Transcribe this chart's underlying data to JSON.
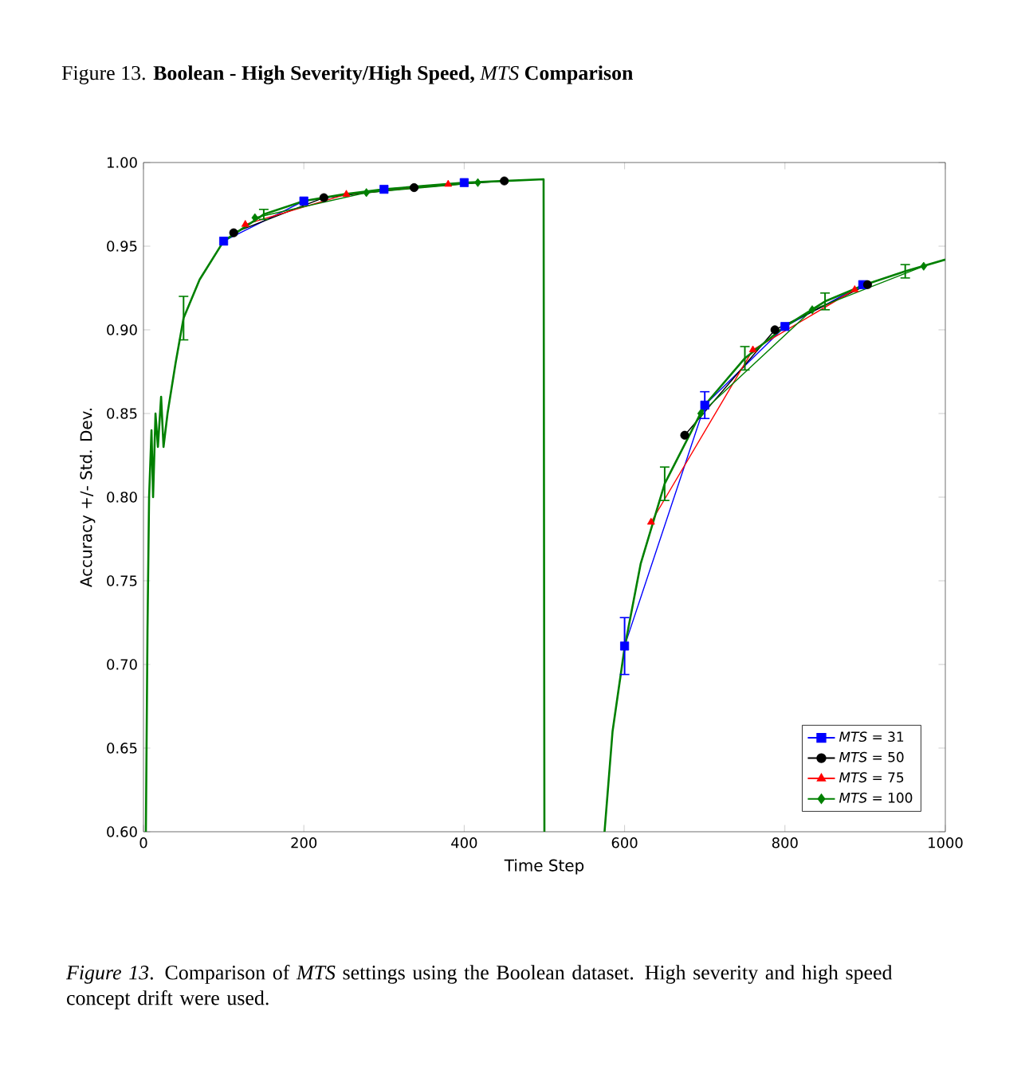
{
  "chart_data": {
    "type": "line",
    "title": "Figure 13. **Boolean - High Severity/High Speed,** *MTS* **Comparison**",
    "annotations": [
      "*Figure 13*. Comparison of *MTS* settings using the Boolean dataset. High severity and high speed concept drift were used."
    ],
    "xlabel": "Time Step",
    "ylabel": "Accuracy +/- Std. Dev.",
    "xlim": [
      0,
      1000
    ],
    "ylim": [
      0.6,
      1.0
    ],
    "xticks": [
      0,
      200,
      400,
      600,
      800,
      1000
    ],
    "yticks": [
      {
        "value": 0.6,
        "label": "0.60"
      },
      {
        "value": 0.65,
        "label": "0.65"
      },
      {
        "value": 0.7,
        "label": "0.70"
      },
      {
        "value": 0.75,
        "label": "0.75"
      },
      {
        "value": 0.8,
        "label": "0.80"
      },
      {
        "value": 0.85,
        "label": "0.85"
      },
      {
        "value": 0.9,
        "label": "0.90"
      },
      {
        "value": 0.95,
        "label": "0.95"
      },
      {
        "value": 1.0,
        "label": "1.00"
      }
    ],
    "legend": "bottom right",
    "series": [
      {
        "name": "*MTS* = 31",
        "color": "#0000ff",
        "marker": "square",
        "x": [
          100,
          200,
          300,
          400,
          500,
          600,
          700,
          800,
          897
        ],
        "values": [
          0.953,
          0.977,
          0.984,
          0.988,
          null,
          0.711,
          0.855,
          0.902,
          0.927
        ],
        "errors": [
          null,
          null,
          null,
          null,
          null,
          0.017,
          0.008,
          null,
          null
        ]
      },
      {
        "name": "*MTS* = 50",
        "color": "#000000",
        "marker": "circle",
        "x": [
          112.5,
          225,
          337.5,
          450,
          562.5,
          675,
          787.5,
          903
        ],
        "values": [
          0.958,
          0.979,
          0.985,
          0.989,
          null,
          0.837,
          0.9,
          0.927
        ]
      },
      {
        "name": "*MTS* = 75",
        "color": "#ff0000",
        "marker": "triangle",
        "x": [
          127,
          253,
          380,
          507,
          633,
          760,
          887
        ],
        "values": [
          0.963,
          0.981,
          0.987,
          null,
          0.785,
          0.888,
          0.924
        ]
      },
      {
        "name": "*MTS* = 100",
        "color": "#008000",
        "marker": "diamond",
        "x": [
          139,
          278,
          417,
          556,
          695,
          834,
          973
        ],
        "values": [
          0.967,
          0.982,
          0.988,
          null,
          0.85,
          0.912,
          0.938
        ]
      },
      {
        "color": "#008000",
        "marker": "none",
        "x": [
          3,
          5,
          7,
          10,
          12,
          15,
          18,
          22,
          25,
          30,
          40,
          50,
          70,
          100,
          150,
          200,
          250,
          300,
          350,
          400,
          450,
          499,
          500,
          540,
          575,
          585,
          600,
          620,
          650,
          700,
          750,
          800,
          850,
          900,
          950,
          1000
        ],
        "values": [
          0.6,
          0.72,
          0.8,
          0.84,
          0.8,
          0.85,
          0.83,
          0.86,
          0.83,
          0.85,
          0.88,
          0.907,
          0.93,
          0.953,
          0.969,
          0.977,
          0.981,
          0.984,
          0.986,
          0.988,
          0.989,
          0.99,
          0.6,
          null,
          0.6,
          0.66,
          0.71,
          0.76,
          0.808,
          0.855,
          0.883,
          0.902,
          0.917,
          0.927,
          0.935,
          0.942
        ],
        "errors": [
          null,
          null,
          null,
          null,
          null,
          null,
          null,
          null,
          null,
          null,
          null,
          0.013,
          null,
          null,
          0.003,
          null,
          null,
          null,
          null,
          null,
          null,
          null,
          null,
          null,
          null,
          null,
          null,
          null,
          0.01,
          null,
          0.007,
          null,
          0.005,
          null,
          0.004,
          null
        ]
      }
    ]
  }
}
